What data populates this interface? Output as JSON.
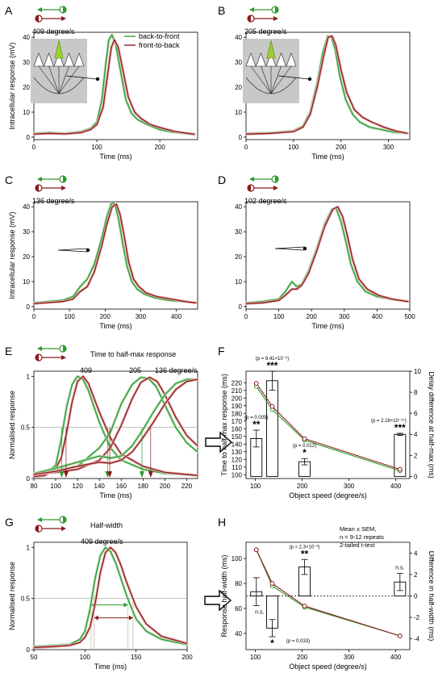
{
  "colors": {
    "green": "#2e9b2e",
    "red": "#8b1a1a",
    "shade_green": "#b6deb6",
    "shade_red": "#e6b3b3",
    "axis": "#000000",
    "grid": "#9a9a9a",
    "inset_bg": "#c8c8c8"
  },
  "icons": [
    "arrow-left-green-icon",
    "arrow-right-red-icon",
    "fly-eye-inset-icon",
    "object-pointer-icon",
    "hollow-right-arrow-icon"
  ],
  "chart_data": [
    {
      "panel": "A",
      "type": "line",
      "speed_label": "409 degree/s",
      "xlabel": "Time (ms)",
      "ylabel": "Intracellular response (mV)",
      "xlim": [
        0,
        260
      ],
      "ylim": [
        -1,
        42
      ],
      "xticks": [
        0,
        100,
        200
      ],
      "yticks": [
        0,
        10,
        20,
        30,
        40
      ],
      "legend": {
        "placement": "top-right",
        "entries": [
          "back-to-front",
          "front-to-back"
        ]
      },
      "series": [
        {
          "name": "back-to-front",
          "color": "green",
          "x": [
            0,
            25,
            50,
            75,
            90,
            100,
            108,
            114,
            119,
            124,
            130,
            138,
            146,
            155,
            165,
            180,
            200,
            220,
            240,
            255
          ],
          "y": [
            1.5,
            1.8,
            1.5,
            2.2,
            3.5,
            6,
            15,
            29,
            39,
            41,
            37,
            26,
            15,
            9.5,
            7,
            5,
            3,
            2,
            1.5,
            1
          ]
        },
        {
          "name": "front-to-back",
          "color": "red",
          "x": [
            0,
            25,
            50,
            75,
            90,
            100,
            110,
            117,
            123,
            128,
            134,
            142,
            150,
            160,
            170,
            185,
            205,
            225,
            245,
            255
          ],
          "y": [
            1.2,
            1.5,
            1.3,
            1.8,
            3,
            5,
            12,
            25,
            36,
            39,
            36,
            26,
            16,
            10,
            7.5,
            5,
            3.5,
            2.2,
            1.5,
            1.2
          ]
        }
      ]
    },
    {
      "panel": "B",
      "type": "line",
      "speed_label": "205 degree/s",
      "xlabel": "Time (ms)",
      "ylabel": "",
      "xlim": [
        0,
        345
      ],
      "ylim": [
        -1,
        42
      ],
      "xticks": [
        0,
        100,
        200,
        300
      ],
      "yticks": [
        0,
        10,
        20,
        30,
        40
      ],
      "series": [
        {
          "name": "back-to-front",
          "color": "green",
          "x": [
            0,
            50,
            100,
            120,
            135,
            150,
            162,
            172,
            180,
            188,
            198,
            210,
            225,
            240,
            260,
            285,
            310,
            340
          ],
          "y": [
            1.5,
            1.7,
            2.5,
            4.5,
            10,
            22,
            34,
            40.5,
            40,
            35,
            24,
            15,
            9,
            6,
            4,
            3,
            2,
            1.5
          ]
        },
        {
          "name": "front-to-back",
          "color": "red",
          "x": [
            0,
            50,
            100,
            120,
            135,
            150,
            163,
            173,
            181,
            189,
            200,
            212,
            228,
            245,
            265,
            290,
            315,
            340
          ],
          "y": [
            1.2,
            1.5,
            2.2,
            4,
            9,
            20,
            32,
            40,
            40.5,
            37,
            27,
            18,
            11,
            8,
            6,
            4,
            2.5,
            1.5
          ]
        }
      ]
    },
    {
      "panel": "C",
      "type": "line",
      "speed_label": "136 degree/s",
      "xlabel": "Time (ms)",
      "ylabel": "Intracellular response (mV)",
      "xlim": [
        0,
        460
      ],
      "ylim": [
        -1,
        42
      ],
      "xticks": [
        0,
        100,
        200,
        300,
        400
      ],
      "yticks": [
        0,
        10,
        20,
        30,
        40
      ],
      "series": [
        {
          "name": "back-to-front",
          "color": "green",
          "x": [
            0,
            40,
            80,
            110,
            130,
            150,
            170,
            190,
            205,
            218,
            228,
            238,
            250,
            262,
            275,
            290,
            310,
            340,
            380,
            420,
            455
          ],
          "y": [
            1.5,
            2,
            2.5,
            4,
            8,
            11,
            17,
            27,
            36,
            41.5,
            41,
            35,
            25,
            16,
            10,
            7,
            5,
            3.5,
            2.5,
            2,
            1.5
          ]
        },
        {
          "name": "front-to-back",
          "color": "red",
          "x": [
            0,
            40,
            80,
            110,
            130,
            150,
            170,
            190,
            205,
            220,
            232,
            242,
            254,
            266,
            280,
            295,
            315,
            345,
            385,
            425,
            455
          ],
          "y": [
            1.2,
            1.6,
            2,
            3,
            6,
            8,
            14,
            24,
            33,
            40,
            41,
            37,
            28,
            18,
            11,
            8,
            5.5,
            4,
            3,
            2,
            1.5
          ]
        }
      ]
    },
    {
      "panel": "D",
      "type": "line",
      "speed_label": "102 degree/s",
      "xlabel": "Time (ms)",
      "ylabel": "",
      "xlim": [
        0,
        500
      ],
      "ylim": [
        -1,
        42
      ],
      "xticks": [
        0,
        100,
        200,
        300,
        400,
        500
      ],
      "yticks": [
        0,
        10,
        20,
        30,
        40
      ],
      "series": [
        {
          "name": "back-to-front",
          "color": "green",
          "x": [
            0,
            50,
            100,
            120,
            140,
            155,
            170,
            190,
            215,
            240,
            262,
            275,
            290,
            305,
            320,
            340,
            365,
            400,
            440,
            495
          ],
          "y": [
            1.5,
            2,
            3,
            6,
            10,
            8,
            9,
            14,
            23,
            33,
            39,
            39.5,
            34,
            26,
            17,
            10,
            6,
            4,
            3,
            2
          ]
        },
        {
          "name": "front-to-back",
          "color": "red",
          "x": [
            0,
            50,
            100,
            120,
            140,
            155,
            170,
            190,
            215,
            240,
            265,
            280,
            295,
            310,
            325,
            345,
            370,
            405,
            445,
            495
          ],
          "y": [
            1.2,
            1.5,
            2.5,
            4.5,
            7,
            7,
            8.5,
            13,
            22,
            32,
            39,
            40,
            36,
            28,
            19,
            11,
            7,
            4.5,
            3,
            2
          ]
        }
      ]
    },
    {
      "panel": "E",
      "type": "line",
      "title": "Time to half-max response",
      "speed_labels": [
        "409",
        "205",
        "136 degree/s"
      ],
      "xlabel": "Time (ms)",
      "ylabel": "Normalised response",
      "xlim": [
        80,
        230
      ],
      "ylim": [
        0,
        1.05
      ],
      "xticks": [
        80,
        100,
        120,
        140,
        160,
        180,
        200,
        220
      ],
      "yticks": [
        0,
        0.5,
        1
      ],
      "series": [
        {
          "name": "back-to-front 409 degree/s",
          "color": "green",
          "x": [
            80,
            90,
            100,
            105,
            110,
            115,
            120,
            125,
            130,
            140,
            150,
            160,
            180,
            200,
            230
          ],
          "y": [
            0.02,
            0.04,
            0.13,
            0.38,
            0.7,
            0.92,
            1.0,
            0.97,
            0.86,
            0.55,
            0.3,
            0.18,
            0.09,
            0.05,
            0.03
          ]
        },
        {
          "name": "front-to-back 409 degree/s",
          "color": "red",
          "x": [
            80,
            90,
            100,
            105,
            110,
            115,
            120,
            125,
            130,
            140,
            150,
            160,
            180,
            200,
            230
          ],
          "y": [
            0.02,
            0.03,
            0.1,
            0.2,
            0.45,
            0.75,
            0.95,
            1.0,
            0.93,
            0.65,
            0.4,
            0.24,
            0.12,
            0.06,
            0.03
          ]
        },
        {
          "name": "back-to-front 205 degree/s",
          "color": "green",
          "x": [
            80,
            100,
            120,
            140,
            150,
            160,
            170,
            178,
            185,
            192,
            200,
            210,
            220,
            230
          ],
          "y": [
            0.05,
            0.08,
            0.12,
            0.3,
            0.45,
            0.73,
            0.92,
            0.99,
            0.98,
            0.9,
            0.72,
            0.5,
            0.35,
            0.26
          ]
        },
        {
          "name": "front-to-back 205 degree/s",
          "color": "red",
          "x": [
            80,
            100,
            120,
            140,
            150,
            160,
            170,
            178,
            186,
            193,
            200,
            210,
            220,
            230
          ],
          "y": [
            0.04,
            0.06,
            0.09,
            0.18,
            0.3,
            0.52,
            0.78,
            0.94,
            0.99,
            0.95,
            0.82,
            0.6,
            0.42,
            0.32
          ]
        },
        {
          "name": "back-to-front 136 degree/s",
          "color": "green",
          "x": [
            80,
            100,
            120,
            140,
            150,
            160,
            170,
            180,
            190,
            200,
            210,
            220,
            230
          ],
          "y": [
            0.05,
            0.1,
            0.16,
            0.22,
            0.2,
            0.22,
            0.32,
            0.48,
            0.66,
            0.82,
            0.93,
            0.97,
            0.97
          ]
        },
        {
          "name": "front-to-back 136 degree/s",
          "color": "red",
          "x": [
            80,
            100,
            120,
            140,
            150,
            160,
            170,
            180,
            190,
            200,
            210,
            220,
            230
          ],
          "y": [
            0.04,
            0.07,
            0.12,
            0.16,
            0.15,
            0.18,
            0.26,
            0.4,
            0.56,
            0.73,
            0.87,
            0.95,
            0.97
          ]
        }
      ],
      "half_max_markers": [
        {
          "series": "back-to-front",
          "color": "green",
          "x": 105.5
        },
        {
          "series": "front-to-back",
          "color": "red",
          "x": 109.5
        },
        {
          "series": "back-to-front",
          "color": "green",
          "x": 147.5
        },
        {
          "series": "front-to-back",
          "color": "red",
          "x": 149.5
        },
        {
          "series": "back-to-front",
          "color": "green",
          "x": 179
        },
        {
          "series": "front-to-back",
          "color": "red",
          "x": 187
        }
      ]
    },
    {
      "panel": "F",
      "type": "line",
      "xlabel": "Object speed (degree/s)",
      "ylabel": "Time to half-max response (ms)",
      "y2label": "Delay difference at half-max (ms)",
      "xlim": [
        80,
        430
      ],
      "ylim": [
        95,
        235
      ],
      "y2lim": [
        -0.2,
        10
      ],
      "xticks": [
        100,
        200,
        300,
        400
      ],
      "yticks": [
        100,
        110,
        120,
        130,
        140,
        150,
        160,
        170,
        180,
        190,
        200,
        210,
        220
      ],
      "y2ticks": [
        0,
        2,
        4,
        6,
        8,
        10
      ],
      "series": [
        {
          "name": "back-to-front",
          "color": "green",
          "x": [
            102,
            136,
            205,
            409
          ],
          "y": [
            215,
            185,
            145,
            105
          ]
        },
        {
          "name": "front-to-back",
          "color": "red",
          "x": [
            102,
            136,
            205,
            409
          ],
          "y": [
            219,
            189,
            147,
            107
          ]
        }
      ],
      "bars": {
        "axis": "y2",
        "x": [
          102,
          136,
          205,
          409
        ],
        "values": [
          3.6,
          9.1,
          1.4,
          4.0
        ],
        "err": [
          0.8,
          0.9,
          0.3,
          0.1
        ]
      },
      "annotations": [
        {
          "x": 102,
          "text": "(p = 0.005)",
          "stars": "**"
        },
        {
          "x": 136,
          "text": "(p = 9.41×10⁻⁶)",
          "stars": "***"
        },
        {
          "x": 205,
          "text": "(p = 0.012)",
          "stars": "*"
        },
        {
          "x": 409,
          "text": "(p = 2.18×10⁻¹⁴)",
          "stars": "***"
        }
      ]
    },
    {
      "panel": "G",
      "type": "line",
      "title": "Half-width",
      "speed_label": "409 degree/s",
      "xlabel": "Time (ms)",
      "ylabel": "Normalised response",
      "xlim": [
        50,
        200
      ],
      "ylim": [
        0,
        1.05
      ],
      "xticks": [
        50,
        100,
        150,
        200
      ],
      "yticks": [
        0,
        0.5,
        1
      ],
      "series": [
        {
          "name": "back-to-front",
          "color": "green",
          "x": [
            50,
            70,
            85,
            95,
            100,
            105,
            110,
            115,
            120,
            125,
            130,
            135,
            140,
            145,
            150,
            160,
            175,
            200
          ],
          "y": [
            0.03,
            0.04,
            0.05,
            0.1,
            0.18,
            0.4,
            0.7,
            0.92,
            1.0,
            0.96,
            0.85,
            0.7,
            0.55,
            0.42,
            0.3,
            0.18,
            0.1,
            0.05
          ]
        },
        {
          "name": "front-to-back",
          "color": "red",
          "x": [
            50,
            70,
            85,
            95,
            100,
            105,
            110,
            115,
            120,
            125,
            130,
            135,
            140,
            145,
            150,
            160,
            175,
            200
          ],
          "y": [
            0.02,
            0.03,
            0.04,
            0.07,
            0.12,
            0.22,
            0.45,
            0.75,
            0.95,
            1.0,
            0.95,
            0.83,
            0.68,
            0.55,
            0.42,
            0.25,
            0.13,
            0.06
          ]
        }
      ],
      "half_width": [
        {
          "series": "back-to-front",
          "color": "green",
          "x_start": 106,
          "x_end": 142
        },
        {
          "series": "front-to-back",
          "color": "red",
          "x_start": 109,
          "x_end": 147
        }
      ]
    },
    {
      "panel": "H",
      "type": "line",
      "xlabel": "Object speed (degree/s)",
      "ylabel": "Response half-width (ms)",
      "y2label": "Difference in half-width (ms)",
      "xlim": [
        80,
        430
      ],
      "ylim": [
        27,
        113
      ],
      "y2lim": [
        -5,
        5
      ],
      "xticks": [
        100,
        200,
        300,
        400
      ],
      "yticks": [
        40,
        60,
        80,
        100
      ],
      "y2ticks": [
        -4,
        -2,
        0,
        2,
        4
      ],
      "legend_text": [
        "Mean ± SEM,",
        "n = 9-12 repeats",
        "2-tailed t-test"
      ],
      "series": [
        {
          "name": "back-to-front",
          "color": "green",
          "x": [
            102,
            136,
            205,
            409
          ],
          "y": [
            107,
            78,
            61,
            38
          ]
        },
        {
          "name": "front-to-back",
          "color": "red",
          "x": [
            102,
            136,
            205,
            409
          ],
          "y": [
            107,
            80,
            62,
            38
          ]
        }
      ],
      "bars": {
        "axis": "y2",
        "x": [
          102,
          136,
          205,
          409
        ],
        "values": [
          0.4,
          -3.0,
          2.7,
          1.3
        ],
        "err": [
          1.3,
          0.8,
          0.7,
          0.8
        ]
      },
      "annotations": [
        {
          "x": 102,
          "text": "n.s."
        },
        {
          "x": 136,
          "text": "(p = 0.033)",
          "stars": "*"
        },
        {
          "x": 205,
          "text": "(p = 2.3×10⁻³)",
          "stars": "**"
        },
        {
          "x": 409,
          "text": "n.s."
        }
      ]
    }
  ]
}
